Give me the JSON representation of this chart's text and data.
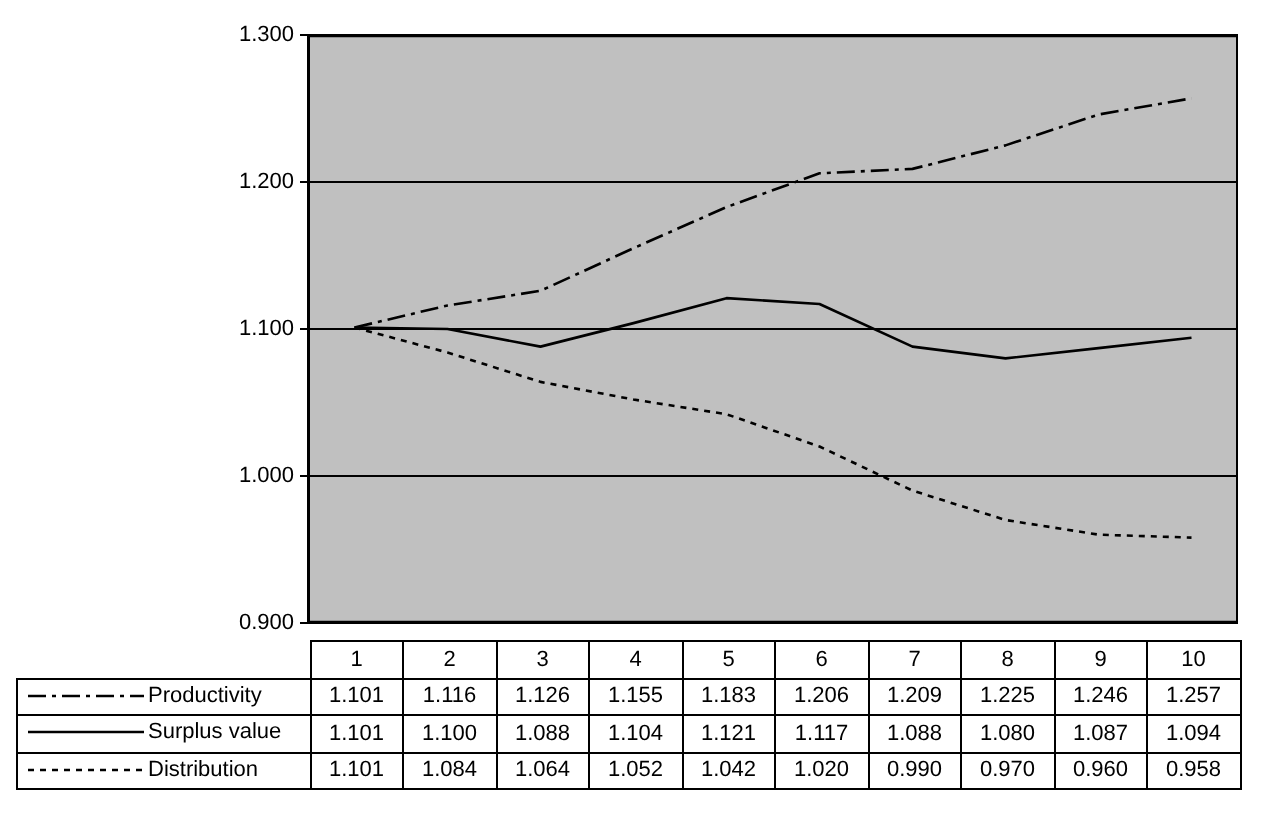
{
  "chart_data": {
    "type": "line",
    "categories": [
      "1",
      "2",
      "3",
      "4",
      "5",
      "6",
      "7",
      "8",
      "9",
      "10"
    ],
    "series": [
      {
        "name": "Productivity",
        "color": "#000000",
        "line_style": "dashed",
        "values": [
          1.101,
          1.116,
          1.126,
          1.155,
          1.183,
          1.206,
          1.209,
          1.225,
          1.246,
          1.257
        ],
        "value_labels": [
          "1.101",
          "1.116",
          "1.126",
          "1.155",
          "1.183",
          "1.206",
          "1.209",
          "1.225",
          "1.246",
          "1.257"
        ]
      },
      {
        "name": "Surplus value",
        "color": "#000000",
        "line_style": "solid",
        "values": [
          1.101,
          1.1,
          1.088,
          1.104,
          1.121,
          1.117,
          1.088,
          1.08,
          1.087,
          1.094
        ],
        "value_labels": [
          "1.101",
          "1.100",
          "1.088",
          "1.104",
          "1.121",
          "1.117",
          "1.088",
          "1.080",
          "1.087",
          "1.094"
        ]
      },
      {
        "name": "Distribution",
        "color": "#000000",
        "line_style": "dotted",
        "values": [
          1.101,
          1.084,
          1.064,
          1.052,
          1.042,
          1.02,
          0.99,
          0.97,
          0.96,
          0.958
        ],
        "value_labels": [
          "1.101",
          "1.084",
          "1.064",
          "1.052",
          "1.042",
          "1.020",
          "0.990",
          "0.970",
          "0.960",
          "0.958"
        ]
      }
    ],
    "ylim": [
      0.9,
      1.3
    ],
    "yticks": [
      {
        "value": 0.9,
        "label": "0.900"
      },
      {
        "value": 1.0,
        "label": "1.000"
      },
      {
        "value": 1.1,
        "label": "1.100"
      },
      {
        "value": 1.2,
        "label": "1.200"
      },
      {
        "value": 1.3,
        "label": "1.300"
      }
    ],
    "grid": "y",
    "legend": "bottom",
    "marker": "none"
  }
}
